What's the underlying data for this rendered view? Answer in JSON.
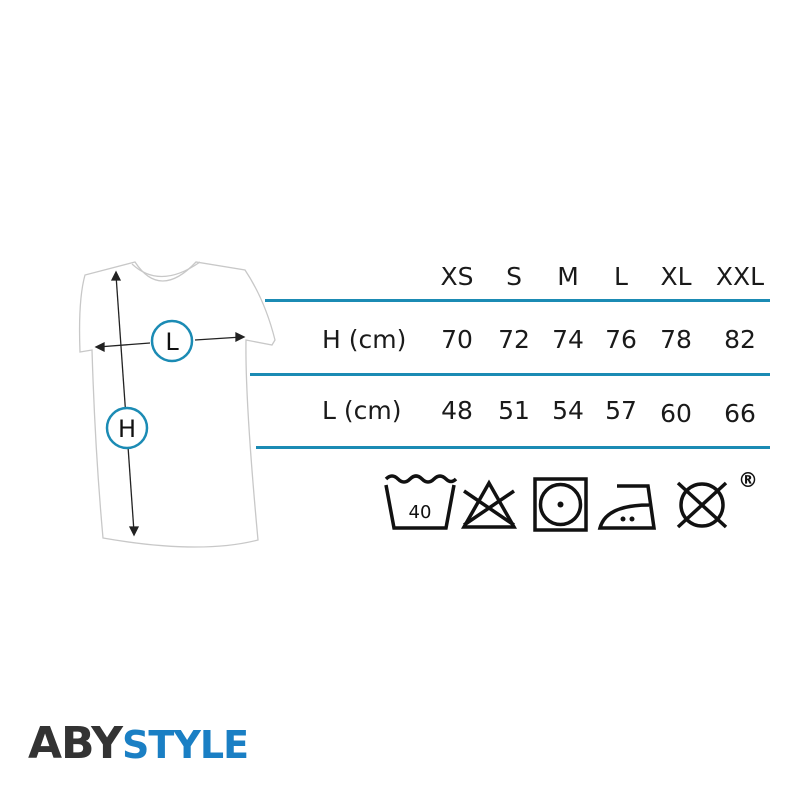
{
  "sizes": [
    "XS",
    "S",
    "M",
    "L",
    "XL",
    "XXL"
  ],
  "rows": [
    {
      "label": "H (cm)",
      "values": [
        "70",
        "72",
        "74",
        "76",
        "78",
        "82"
      ]
    },
    {
      "label": "L (cm)",
      "values": [
        "48",
        "51",
        "54",
        "57",
        "60",
        "66"
      ]
    }
  ],
  "diagram": {
    "width_marker": "L",
    "height_marker": "H"
  },
  "care": {
    "wash_temp": "40",
    "icons": [
      "wash-40-icon",
      "no-bleach-icon",
      "tumble-dry-low-icon",
      "iron-medium-icon",
      "no-dry-clean-icon"
    ],
    "registered": "®"
  },
  "brand": {
    "part1": "ABY",
    "part2": "STYLE",
    "dark": "#333333",
    "blue": "#1a7fc4"
  },
  "colors": {
    "accent": "#1b8bb4"
  }
}
